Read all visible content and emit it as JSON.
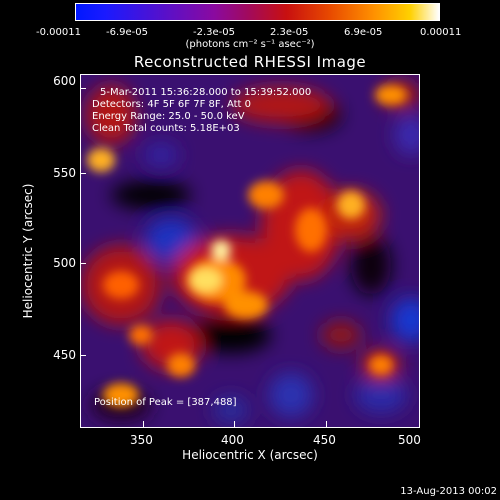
{
  "colorbar": {
    "tick_labels": [
      "-0.00011",
      "-6.9e-05",
      "-2.3e-05",
      "2.3e-05",
      "6.9e-05",
      "0.00011"
    ],
    "units": "(photons cm⁻² s⁻¹ asec⁻²)",
    "colors": [
      "#0018ff",
      "#8a0aa0",
      "#c81010",
      "#ff9000",
      "#ffffff"
    ]
  },
  "title": "Reconstructed RHESSI Image",
  "info": {
    "time": "5-Mar-2011 15:36:28.000 to 15:39:52.000",
    "detectors": "Detectors: 4F 5F 6F 7F 8F, Att 0",
    "energy": "Energy Range: 25.0 - 50.0 keV",
    "clean": "Clean     Total counts: 5.18E+03"
  },
  "peak_label": "Position of Peak = [387,488]",
  "x_axis": {
    "label": "Heliocentric X (arcsec)",
    "ticks": [
      "350",
      "400",
      "450",
      "500"
    ],
    "range": [
      314,
      500
    ]
  },
  "y_axis": {
    "label": "Heliocentric Y (arcsec)",
    "ticks": [
      "450",
      "500",
      "550",
      "600"
    ],
    "range": [
      414,
      604
    ]
  },
  "timestamp": "13-Aug-2013 00:02"
}
